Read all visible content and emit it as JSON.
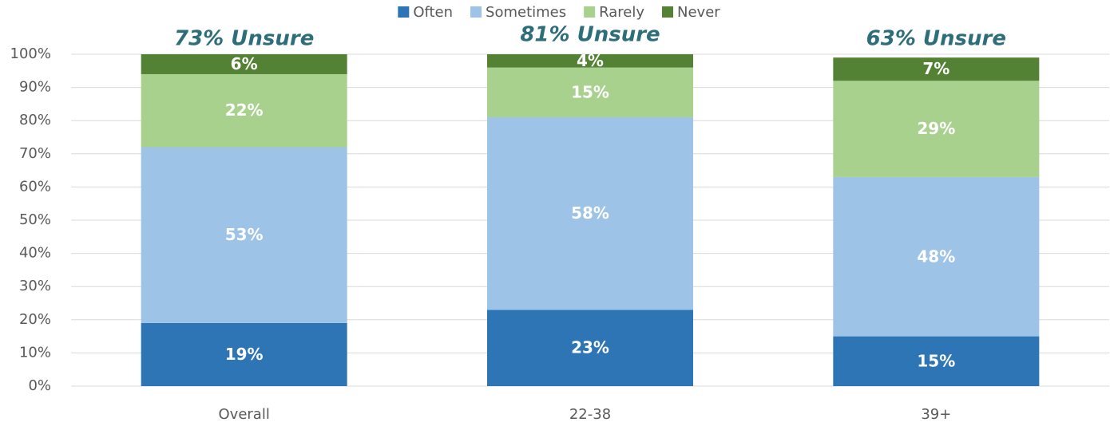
{
  "chart_data": {
    "type": "stacked_bar",
    "categories": [
      "Overall",
      "22-38",
      "39+"
    ],
    "series": [
      {
        "name": "Often",
        "color": "#2e75b6",
        "values": [
          19,
          23,
          15
        ],
        "value_labels": [
          "19%",
          "23%",
          "15%"
        ]
      },
      {
        "name": "Sometimes",
        "color": "#9dc3e6",
        "values": [
          53,
          58,
          48
        ],
        "value_labels": [
          "53%",
          "58%",
          "48%"
        ]
      },
      {
        "name": "Rarely",
        "color": "#a9d18e",
        "values": [
          22,
          15,
          29
        ],
        "value_labels": [
          "22%",
          "15%",
          "29%"
        ]
      },
      {
        "name": "Never",
        "color": "#548235",
        "values": [
          6,
          4,
          7
        ],
        "value_labels": [
          "6%",
          "4%",
          "7%"
        ]
      }
    ],
    "annotations": [
      "73% Unsure",
      "81% Unsure",
      "63% Unsure"
    ],
    "ylim": [
      0,
      100
    ],
    "yticks": [
      {
        "value": 0,
        "label": "0%"
      },
      {
        "value": 10,
        "label": "10%"
      },
      {
        "value": 20,
        "label": "20%"
      },
      {
        "value": 30,
        "label": "30%"
      },
      {
        "value": 40,
        "label": "40%"
      },
      {
        "value": 50,
        "label": "50%"
      },
      {
        "value": 60,
        "label": "60%"
      },
      {
        "value": 70,
        "label": "70%"
      },
      {
        "value": 80,
        "label": "80%"
      },
      {
        "value": 90,
        "label": "90%"
      },
      {
        "value": 100,
        "label": "100%"
      }
    ],
    "grid": true,
    "legend": "top"
  }
}
